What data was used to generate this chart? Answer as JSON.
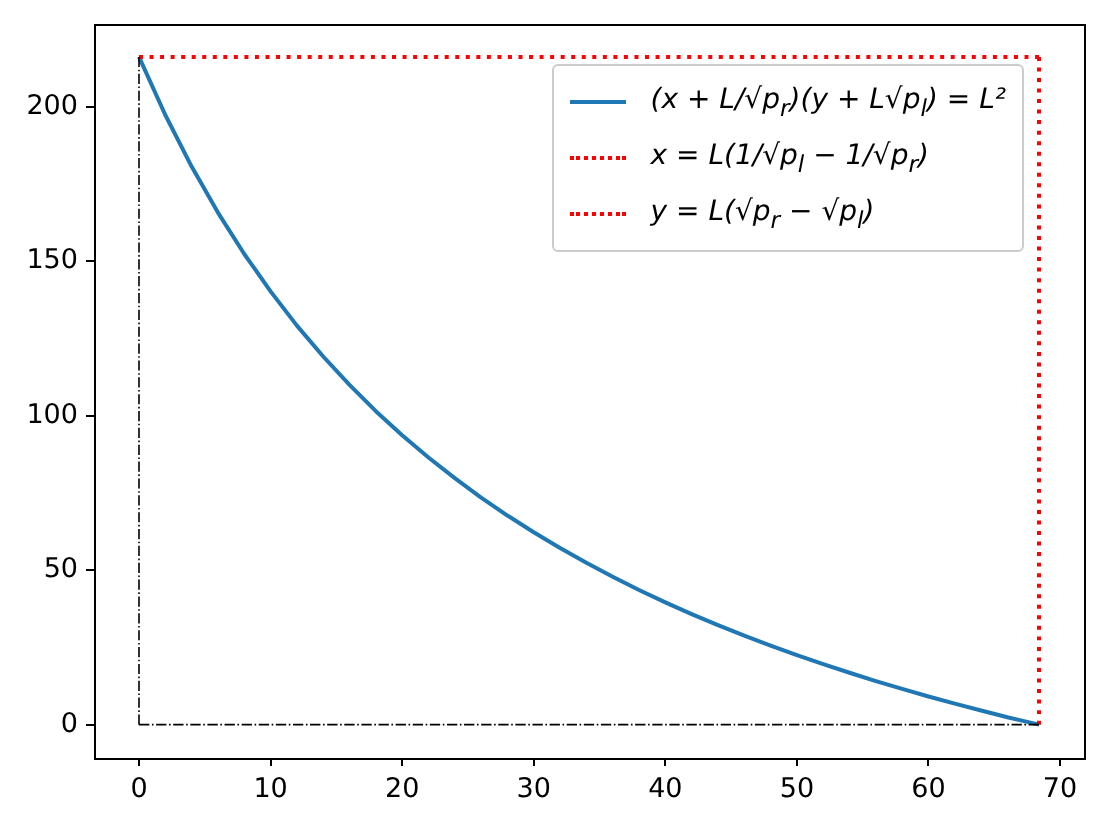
{
  "chart_data": {
    "type": "line",
    "xlim": [
      -3.42,
      71.82
    ],
    "xticks": [
      0,
      10,
      20,
      30,
      40,
      50,
      60,
      70
    ],
    "ylim": [
      -10.8,
      226.8
    ],
    "yticks": [
      0,
      50,
      100,
      150,
      200
    ],
    "legend": "top right",
    "marker": "none",
    "series": [
      {
        "name": "(x + L/√p$_{r}$)(y + L√p$_{l}$) = L²",
        "color": "#1f77b4",
        "line_style": "solid",
        "x": [
          0,
          2,
          4,
          6,
          8,
          10,
          12,
          14,
          16,
          18,
          20,
          22,
          24,
          26,
          28,
          30,
          32,
          34,
          36,
          38,
          40,
          42,
          44,
          46,
          48,
          50,
          52,
          54,
          56,
          58,
          60,
          62,
          64,
          66,
          68.4
        ],
        "values": [
          216.2,
          197.4,
          180.7,
          165.8,
          152.4,
          140.3,
          129.2,
          119.2,
          110.0,
          101.5,
          93.7,
          86.5,
          79.8,
          73.5,
          67.7,
          62.3,
          57.2,
          52.4,
          47.9,
          43.6,
          39.6,
          35.8,
          32.2,
          28.8,
          25.6,
          22.5,
          19.6,
          16.8,
          14.1,
          11.6,
          9.1,
          6.8,
          4.6,
          2.4,
          0
        ]
      },
      {
        "name": "x = L(1/√p$_{l}$ − 1/√p$_{r}$)",
        "color": "#ff0000",
        "line_style": "dotted",
        "x": [
          0,
          68.4
        ],
        "values": [
          216.2,
          216.2
        ]
      },
      {
        "name": "y = L(√p$_{r}$ − √p$_{l}$)",
        "color": "#ff0000",
        "line_style": "dotted",
        "x": [
          68.4,
          68.4
        ],
        "values": [
          0,
          216.2
        ]
      },
      {
        "color": "#000000",
        "line_style": "dashdot",
        "x": [
          0,
          0
        ],
        "values": [
          0,
          216.2
        ]
      },
      {
        "color": "#000000",
        "line_style": "dashdot",
        "x": [
          0,
          68.4
        ],
        "values": [
          0,
          0
        ]
      }
    ]
  }
}
